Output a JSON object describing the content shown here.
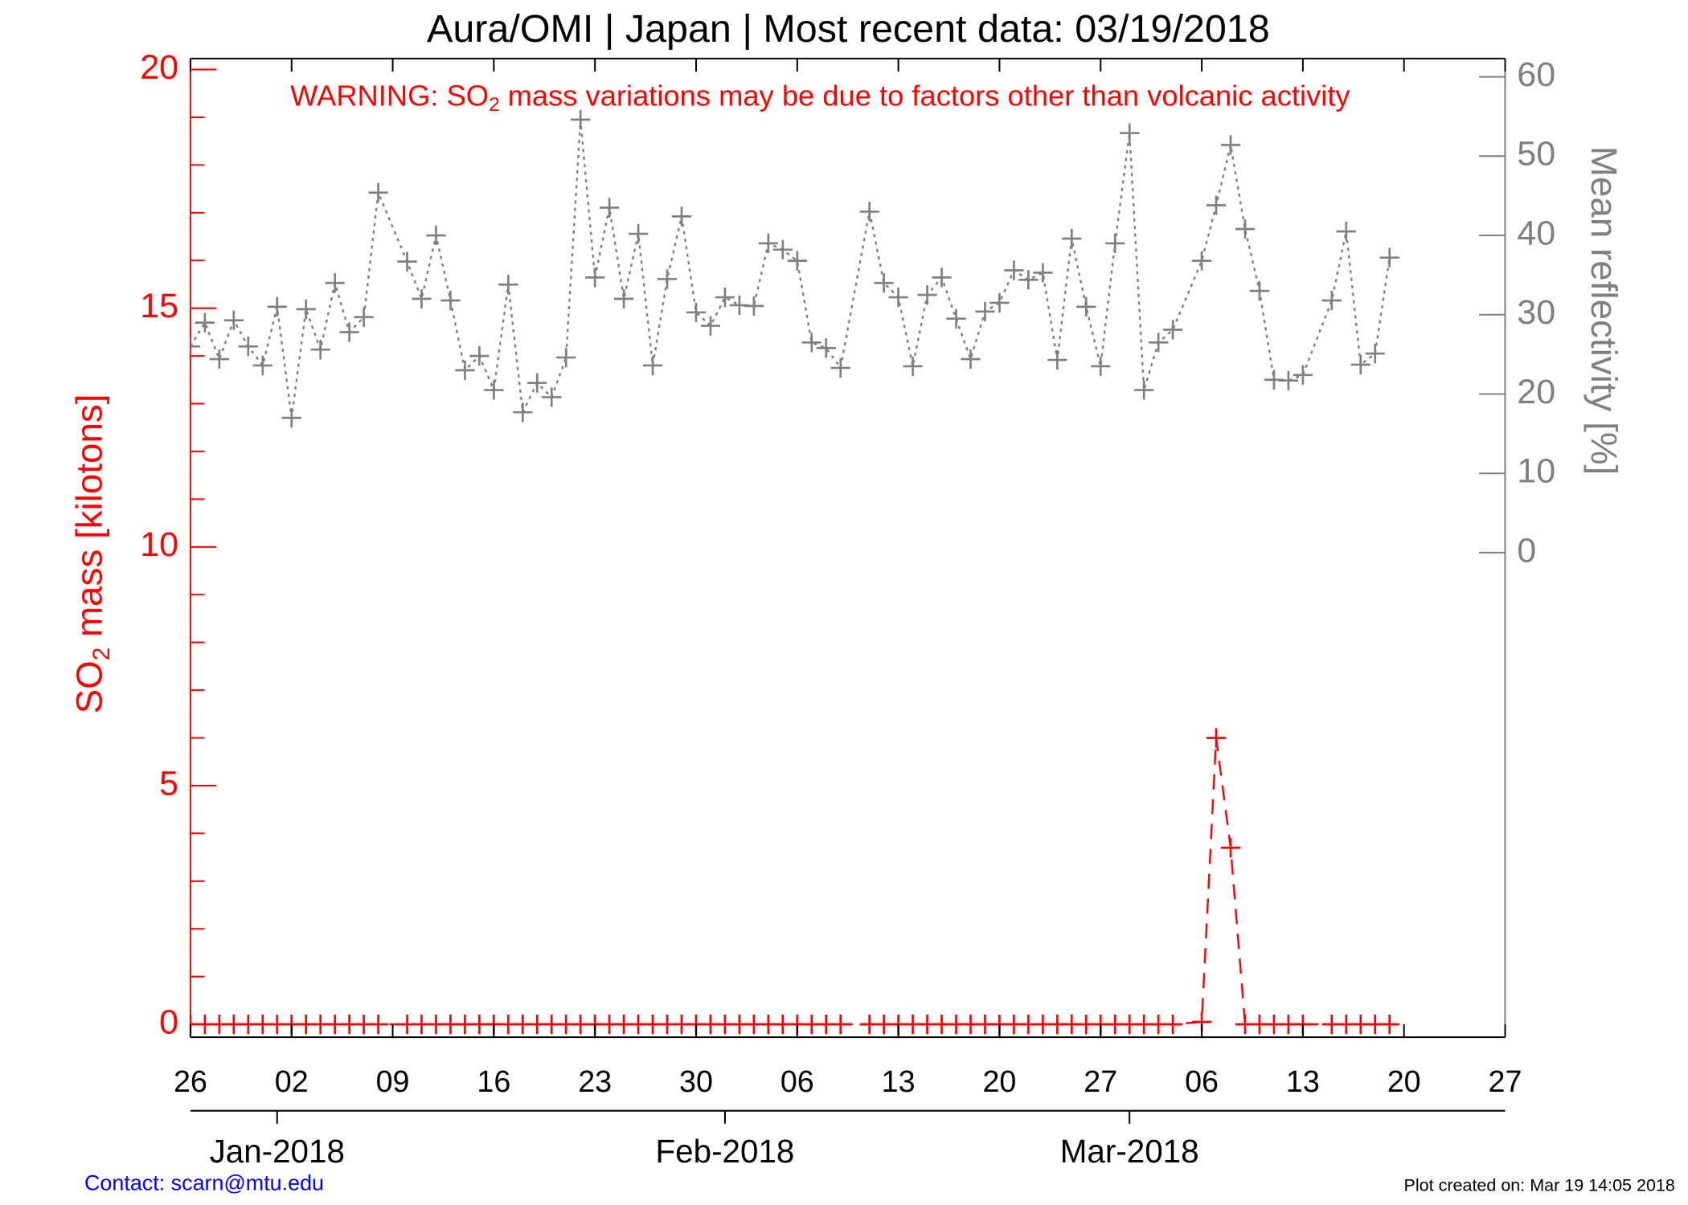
{
  "chart_data": {
    "type": "line",
    "title": "Aura/OMI | Japan | Most recent data: 03/19/2018",
    "warning": [
      "WARNING: SO",
      "2",
      " mass variations may be due to factors other than volcanic activity"
    ],
    "ylabel": [
      "SO",
      "2",
      " mass [kilotons]"
    ],
    "y2label": "Mean reflectivity [%]",
    "contact": "Contact: scarn@mtu.edu",
    "created": "Plot created on: Mar 19 14:05 2018",
    "xlim": [
      "2017-12-26",
      "2018-03-27"
    ],
    "xticks": [
      {
        "value": "2017-12-26",
        "label": "26"
      },
      {
        "value": "2018-01-02",
        "label": "02"
      },
      {
        "value": "2018-01-09",
        "label": "09"
      },
      {
        "value": "2018-01-16",
        "label": "16"
      },
      {
        "value": "2018-01-23",
        "label": "23"
      },
      {
        "value": "2018-01-30",
        "label": "30"
      },
      {
        "value": "2018-02-06",
        "label": "06"
      },
      {
        "value": "2018-02-13",
        "label": "13"
      },
      {
        "value": "2018-02-20",
        "label": "20"
      },
      {
        "value": "2018-02-27",
        "label": "27"
      },
      {
        "value": "2018-03-06",
        "label": "06"
      },
      {
        "value": "2018-03-13",
        "label": "13"
      },
      {
        "value": "2018-03-20",
        "label": "20"
      },
      {
        "value": "2018-03-27",
        "label": "27"
      }
    ],
    "month_ticks": [
      {
        "value": "2018-01-01",
        "label": "Jan-2018"
      },
      {
        "value": "2018-02-01",
        "label": "Feb-2018"
      },
      {
        "value": "2018-03-01",
        "label": "Mar-2018"
      }
    ],
    "ylim": [
      -0.27,
      20.23
    ],
    "yticks": [
      0,
      5,
      10,
      15,
      20
    ],
    "yminorticks": [
      1,
      2,
      3,
      4,
      6,
      7,
      8,
      9,
      11,
      12,
      13,
      14,
      16,
      17,
      18,
      19
    ],
    "y2lim": [
      -61.1,
      62.3
    ],
    "y2ticks": [
      0,
      10,
      20,
      30,
      40,
      50,
      60
    ],
    "x": [
      "2017-12-26",
      "2017-12-27",
      "2017-12-28",
      "2017-12-29",
      "2017-12-30",
      "2017-12-31",
      "2018-01-01",
      "2018-01-02",
      "2018-01-03",
      "2018-01-04",
      "2018-01-05",
      "2018-01-06",
      "2018-01-07",
      "2018-01-08",
      "2018-01-10",
      "2018-01-11",
      "2018-01-12",
      "2018-01-13",
      "2018-01-14",
      "2018-01-15",
      "2018-01-16",
      "2018-01-17",
      "2018-01-18",
      "2018-01-19",
      "2018-01-20",
      "2018-01-21",
      "2018-01-22",
      "2018-01-23",
      "2018-01-24",
      "2018-01-25",
      "2018-01-26",
      "2018-01-27",
      "2018-01-28",
      "2018-01-29",
      "2018-01-30",
      "2018-01-31",
      "2018-02-01",
      "2018-02-02",
      "2018-02-03",
      "2018-02-04",
      "2018-02-05",
      "2018-02-06",
      "2018-02-07",
      "2018-02-08",
      "2018-02-09",
      "2018-02-11",
      "2018-02-12",
      "2018-02-13",
      "2018-02-14",
      "2018-02-15",
      "2018-02-16",
      "2018-02-17",
      "2018-02-18",
      "2018-02-19",
      "2018-02-20",
      "2018-02-21",
      "2018-02-22",
      "2018-02-23",
      "2018-02-24",
      "2018-02-25",
      "2018-02-26",
      "2018-02-27",
      "2018-02-28",
      "2018-03-01",
      "2018-03-02",
      "2018-03-03",
      "2018-03-04",
      "2018-03-06",
      "2018-03-07",
      "2018-03-08",
      "2018-03-09",
      "2018-03-10",
      "2018-03-11",
      "2018-03-12",
      "2018-03-13",
      "2018-03-15",
      "2018-03-16",
      "2018-03-17",
      "2018-03-18",
      "2018-03-19"
    ],
    "series": [
      {
        "color": "#ff0000",
        "axis": "y",
        "dash": "14 9",
        "values": [
          0,
          0,
          0,
          0,
          0,
          0,
          0,
          0,
          0,
          0,
          0,
          0,
          0,
          0,
          0,
          0,
          0,
          0,
          0,
          0,
          0,
          0,
          0,
          0,
          0,
          0,
          0,
          0,
          0,
          0,
          0,
          0,
          0,
          0,
          0,
          0,
          0,
          0,
          0,
          0,
          0,
          0,
          0,
          0,
          0,
          0,
          0,
          0,
          0,
          0,
          0,
          0,
          0,
          0,
          0,
          0,
          0,
          0,
          0,
          0,
          0,
          0,
          0,
          0,
          0,
          0,
          0,
          0.05,
          6,
          3.7,
          0,
          0,
          0,
          0,
          0,
          0,
          0,
          0,
          0,
          0
        ]
      },
      {
        "color": "#808080",
        "axis": "y2",
        "dash": "3 4",
        "values": [
          26,
          29,
          24.4,
          29.3,
          26,
          23.6,
          31,
          17,
          30.7,
          25.6,
          34,
          27.8,
          29.7,
          45.4,
          36.7,
          32,
          40,
          31.8,
          23,
          24.8,
          20.5,
          33.8,
          17.7,
          21.4,
          19.6,
          24.6,
          54.6,
          34.7,
          43.5,
          32,
          40.2,
          23.6,
          34.5,
          42.4,
          30.3,
          28.6,
          32.2,
          31.2,
          31.1,
          39,
          38.2,
          36.8,
          26.5,
          25.8,
          23.3,
          43,
          34,
          32.2,
          23.5,
          32.5,
          34.7,
          29.5,
          24.4,
          30.4,
          31.5,
          35.6,
          34.4,
          35.3,
          24.3,
          39.6,
          31,
          23.5,
          39,
          52.9,
          20.5,
          26.5,
          28.1,
          36.8,
          43.8,
          51.4,
          40.8,
          33,
          21.8,
          21.7,
          22.4,
          31.8,
          40.5,
          23.7,
          25.1,
          37.2
        ]
      }
    ]
  }
}
